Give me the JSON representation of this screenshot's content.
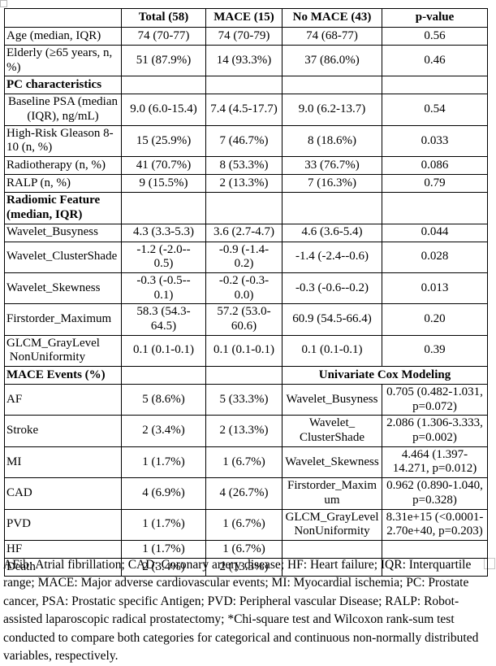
{
  "colors": {
    "border": "#000000",
    "text": "#000000",
    "background": "#ffffff"
  },
  "table": {
    "column_keys": [
      "label",
      "total",
      "mace",
      "no-mace",
      "p-value"
    ],
    "rows": [
      {
        "name": "header-row",
        "single": true,
        "header": true,
        "cells": [
          {
            "text": "",
            "align": "left"
          },
          {
            "text": "Total (58)",
            "bold": true
          },
          {
            "text": "MACE (15)",
            "bold": true
          },
          {
            "text": "No MACE (43)",
            "bold": true
          },
          {
            "text": "p-value",
            "bold": true
          }
        ]
      },
      {
        "name": "row-age",
        "single": true,
        "cells": [
          {
            "text": "Age (median, IQR)",
            "align": "left"
          },
          {
            "text": "74 (70-77)"
          },
          {
            "text": "74 (70-79)"
          },
          {
            "text": "74 (68-77)"
          },
          {
            "text": "0.56"
          }
        ]
      },
      {
        "name": "row-elderly",
        "cells": [
          {
            "text": "Elderly (≥65 years, n,\n%)",
            "align": "left"
          },
          {
            "text": "51 (87.9%)"
          },
          {
            "text": "14 (93.3%)"
          },
          {
            "text": "37 (86.0%)"
          },
          {
            "text": "0.46"
          }
        ]
      },
      {
        "name": "section-pc-characteristics",
        "single": true,
        "cells": [
          {
            "text": "PC characteristics",
            "bold": true,
            "align": "left"
          },
          {
            "text": ""
          },
          {
            "text": ""
          },
          {
            "text": ""
          },
          {
            "text": ""
          }
        ]
      },
      {
        "name": "row-baseline-psa",
        "cells": [
          {
            "text": "Baseline PSA (median\n(IQR), ng/mL)"
          },
          {
            "text": "9.0 (6.0-15.4)"
          },
          {
            "text": "7.4 (4.5-17.7)"
          },
          {
            "text": "9.0 (6.2-13.7)"
          },
          {
            "text": "0.54"
          }
        ]
      },
      {
        "name": "row-high-risk-gleason",
        "cells": [
          {
            "text": "High-Risk Gleason 8-\n10 (n, %)",
            "align": "left"
          },
          {
            "text": "15 (25.9%)"
          },
          {
            "text": "7 (46.7%)"
          },
          {
            "text": "8 (18.6%)"
          },
          {
            "text": "0.033"
          }
        ]
      },
      {
        "name": "row-radiotherapy",
        "single": true,
        "cells": [
          {
            "text": "Radiotherapy (n, %)",
            "align": "left"
          },
          {
            "text": "41 (70.7%)"
          },
          {
            "text": "8 (53.3%)"
          },
          {
            "text": "33 (76.7%)"
          },
          {
            "text": "0.086"
          }
        ]
      },
      {
        "name": "row-ralp",
        "single": true,
        "cells": [
          {
            "text": "RALP (n, %)",
            "align": "left"
          },
          {
            "text": "9 (15.5%)"
          },
          {
            "text": "2 (13.3%)"
          },
          {
            "text": "7 (16.3%)"
          },
          {
            "text": "0.79"
          }
        ]
      },
      {
        "name": "section-radiomic-feature",
        "cells": [
          {
            "text": "Radiomic Feature\n(median, IQR)",
            "bold": true,
            "align": "left"
          },
          {
            "text": ""
          },
          {
            "text": ""
          },
          {
            "text": ""
          },
          {
            "text": ""
          }
        ]
      },
      {
        "name": "row-wavelet-busyness",
        "single": true,
        "cells": [
          {
            "text": "Wavelet_Busyness",
            "align": "left"
          },
          {
            "text": "4.3 (3.3-5.3)"
          },
          {
            "text": "3.6 (2.7-4.7)"
          },
          {
            "text": "4.6 (3.6-5.4)"
          },
          {
            "text": "0.044"
          }
        ]
      },
      {
        "name": "row-wavelet-clustershade",
        "cells": [
          {
            "text": "Wavelet_ClusterShade",
            "align": "left"
          },
          {
            "text": "-1.2 (-2.0--\n0.5)"
          },
          {
            "text": "-0.9 (-1.4-\n0.2)"
          },
          {
            "text": "-1.4 (-2.4--0.6)"
          },
          {
            "text": "0.028"
          }
        ]
      },
      {
        "name": "row-wavelet-skewness",
        "cells": [
          {
            "text": "Wavelet_Skewness",
            "align": "left"
          },
          {
            "text": "-0.3 (-0.5--\n0.1)"
          },
          {
            "text": "-0.2 (-0.3-\n0.0)"
          },
          {
            "text": "-0.3 (-0.6--0.2)"
          },
          {
            "text": "0.013"
          }
        ]
      },
      {
        "name": "row-firstorder-maximum",
        "cells": [
          {
            "text": "Firstorder_Maximum",
            "align": "left"
          },
          {
            "text": "58.3 (54.3-\n64.5)"
          },
          {
            "text": "57.2 (53.0-\n60.6)"
          },
          {
            "text": "60.9 (54.5-66.4)"
          },
          {
            "text": "0.20"
          }
        ]
      },
      {
        "name": "row-glcm-graylevel",
        "cells": [
          {
            "text": "GLCM_GrayLevel\n NonUniformity",
            "align": "left"
          },
          {
            "text": "0.1 (0.1-0.1)"
          },
          {
            "text": "0.1 (0.1-0.1)"
          },
          {
            "text": "0.1 (0.1-0.1)"
          },
          {
            "text": "0.39"
          }
        ]
      },
      {
        "name": "section-mace-events",
        "single": true,
        "cells": [
          {
            "text": "MACE Events (%)",
            "bold": true,
            "align": "left"
          },
          {
            "text": ""
          },
          {
            "text": ""
          },
          {
            "text": "Univariate Cox Modeling",
            "bold": true,
            "colspan": 2,
            "name": "univariate-cox-modeling-header"
          }
        ]
      },
      {
        "name": "row-af",
        "cells": [
          {
            "text": "AF",
            "align": "left"
          },
          {
            "text": "5 (8.6%)"
          },
          {
            "text": "5 (33.3%)"
          },
          {
            "text": "Wavelet_Busyness"
          },
          {
            "text": "0.705 (0.482-1.031,\np=0.072)"
          }
        ]
      },
      {
        "name": "row-stroke",
        "cells": [
          {
            "text": "Stroke",
            "align": "left"
          },
          {
            "text": "2 (3.4%)"
          },
          {
            "text": "2 (13.3%)"
          },
          {
            "text": "Wavelet_\nClusterShade"
          },
          {
            "text": "2.086 (1.306-3.333,\np=0.002)"
          }
        ]
      },
      {
        "name": "row-mi",
        "cells": [
          {
            "text": "MI",
            "align": "left"
          },
          {
            "text": "1 (1.7%)"
          },
          {
            "text": "1 (6.7%)"
          },
          {
            "text": "Wavelet_Skewness"
          },
          {
            "text": "4.464 (1.397-\n14.271, p=0.012)"
          }
        ]
      },
      {
        "name": "row-cad",
        "cells": [
          {
            "text": "CAD",
            "align": "left"
          },
          {
            "text": "4 (6.9%)"
          },
          {
            "text": "4 (26.7%)"
          },
          {
            "text": "Firstorder_Maxim\num"
          },
          {
            "text": "0.962 (0.890-1.040,\np=0.328)"
          }
        ]
      },
      {
        "name": "row-pvd",
        "cells": [
          {
            "text": "PVD",
            "align": "left"
          },
          {
            "text": "1 (1.7%)"
          },
          {
            "text": "1 (6.7%)"
          },
          {
            "text": "GLCM_GrayLevel\nNonUniformity"
          },
          {
            "text": "8.31e+15 (<0.0001-\n2.70e+40, p=0.203)"
          }
        ]
      },
      {
        "name": "row-hf",
        "single": true,
        "cells": [
          {
            "text": "HF",
            "align": "left"
          },
          {
            "text": "1 (1.7%)"
          },
          {
            "text": "1 (6.7%)"
          },
          {
            "text": ""
          },
          {
            "text": ""
          }
        ]
      },
      {
        "name": "row-death",
        "single": true,
        "cells": [
          {
            "text": "Death",
            "align": "left"
          },
          {
            "text": "2 (3.4%)"
          },
          {
            "text": "2 (13.3%)"
          },
          {
            "text": ""
          },
          {
            "text": ""
          }
        ]
      }
    ]
  },
  "footnote": "AFib: Atrial fibrillation; CAD: Coronary artery disease; HF: Heart failure; IQR: Interquartile range; MACE: Major adverse cardiovascular events; MI: Myocardial ischemia; PC: Prostate cancer, PSA: Prostatic specific Antigen; PVD: Peripheral vascular Disease; RALP: Robot-assisted laparoscopic radical prostatectomy; *Chi-square test and Wilcoxon rank-sum test conducted to compare both categories for categorical and continuous non-normally distributed variables, respectively."
}
